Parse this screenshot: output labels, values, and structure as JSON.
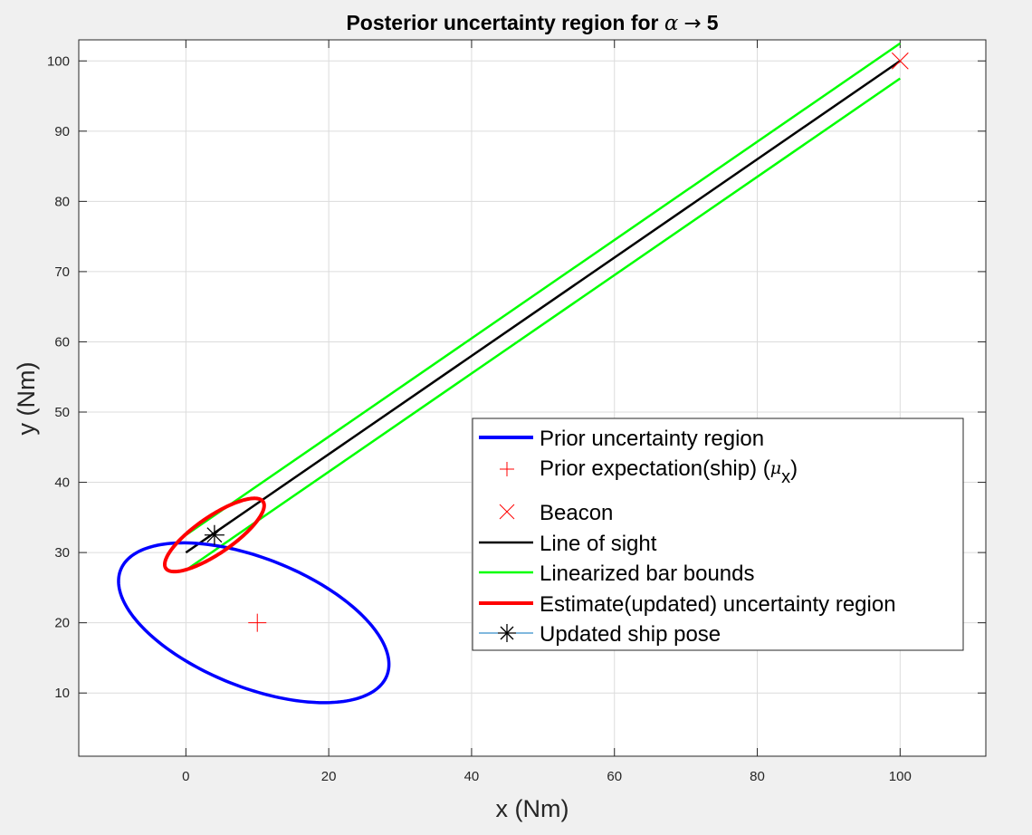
{
  "chart_data": {
    "type": "line",
    "title": {
      "prefix": "Posterior uncertainty region for ",
      "symbol": "α",
      "arrow": "→",
      "value": "5"
    },
    "xlabel": "x (Nm)",
    "ylabel": "y (Nm)",
    "xlim": [
      -15,
      112
    ],
    "ylim": [
      1,
      103
    ],
    "xticks": [
      0,
      20,
      40,
      60,
      80,
      100
    ],
    "yticks": [
      10,
      20,
      30,
      40,
      50,
      60,
      70,
      80,
      90,
      100
    ],
    "grid": true,
    "legend_position": "lower-right",
    "colors": {
      "prior_region": "#0000ff",
      "prior_mean": "#ff0000",
      "beacon": "#ff0000",
      "line_of_sight": "#000000",
      "bar_bounds": "#00ff00",
      "estimate_region": "#ff0000",
      "updated_pose": "#000000",
      "updated_pose_legend_line": "#0072bd"
    },
    "series": [
      {
        "name": "Prior uncertainty region",
        "kind": "ellipse",
        "center": [
          9.5,
          20
        ],
        "semi_axes": [
          9.15,
          20.1
        ],
        "angle_deg": 67.8
      },
      {
        "name": "Prior expectation(ship) (μx)",
        "kind": "marker",
        "marker": "+",
        "points": [
          [
            10,
            20
          ]
        ]
      },
      {
        "name": "Beacon",
        "kind": "marker",
        "marker": "x",
        "points": [
          [
            100,
            100
          ]
        ]
      },
      {
        "name": "Line of sight",
        "kind": "line",
        "points": [
          [
            0,
            30
          ],
          [
            100,
            100
          ]
        ]
      },
      {
        "name": "Linearized bar bounds",
        "kind": "lines",
        "segments": [
          [
            [
              0,
              32.5
            ],
            [
              100,
              102.5
            ]
          ],
          [
            [
              0,
              27.5
            ],
            [
              100,
              97.5
            ]
          ]
        ]
      },
      {
        "name": "Estimate(updated) uncertainty region",
        "kind": "ellipse",
        "center": [
          4,
          32.5
        ],
        "semi_axes": [
          8.3,
          2.6
        ],
        "angle_deg": 35
      },
      {
        "name": "Updated ship pose",
        "kind": "marker",
        "marker": "*",
        "points": [
          [
            4,
            32.5
          ]
        ]
      }
    ]
  },
  "legend": {
    "items": [
      {
        "label": "Prior uncertainty region"
      },
      {
        "label": "Prior expectation(ship) (",
        "symbol": "μ",
        "subscript": "x",
        "suffix": ")"
      },
      {
        "label": "Beacon"
      },
      {
        "label": "Line of sight"
      },
      {
        "label": "Linearized bar bounds"
      },
      {
        "label": "Estimate(updated) uncertainty region"
      },
      {
        "label": "Updated ship pose"
      }
    ]
  }
}
